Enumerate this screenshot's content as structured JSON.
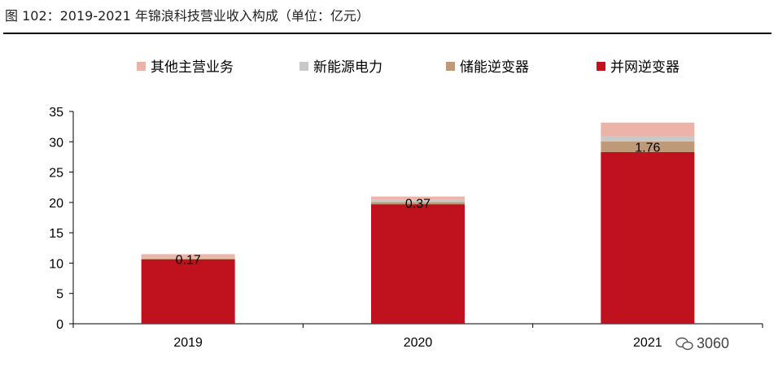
{
  "title": "图 102：2019-2021 年锦浪科技营业收入构成（单位：亿元）",
  "watermark": "3060",
  "chart_data": {
    "type": "bar",
    "stacked": true,
    "categories": [
      "2019",
      "2020",
      "2021"
    ],
    "ylim": [
      0,
      35
    ],
    "yticks": [
      0,
      5,
      10,
      15,
      20,
      25,
      30,
      35
    ],
    "legend_position": "top",
    "series": [
      {
        "name": "并网逆变器",
        "color": "#C0111F",
        "values": [
          10.6,
          19.7,
          28.3
        ]
      },
      {
        "name": "储能逆变器",
        "color": "#BF9A78",
        "values": [
          0.17,
          0.37,
          1.76
        ]
      },
      {
        "name": "新能源电力",
        "color": "#C8C8C8",
        "values": [
          0.1,
          0.4,
          0.8
        ]
      },
      {
        "name": "其他主营业务",
        "color": "#ECB3A8",
        "values": [
          0.6,
          0.5,
          2.3
        ]
      }
    ],
    "legend_order": [
      "其他主营业务",
      "新能源电力",
      "储能逆变器",
      "并网逆变器"
    ],
    "data_labels": [
      "0.17",
      "0.37",
      "1.76"
    ]
  }
}
